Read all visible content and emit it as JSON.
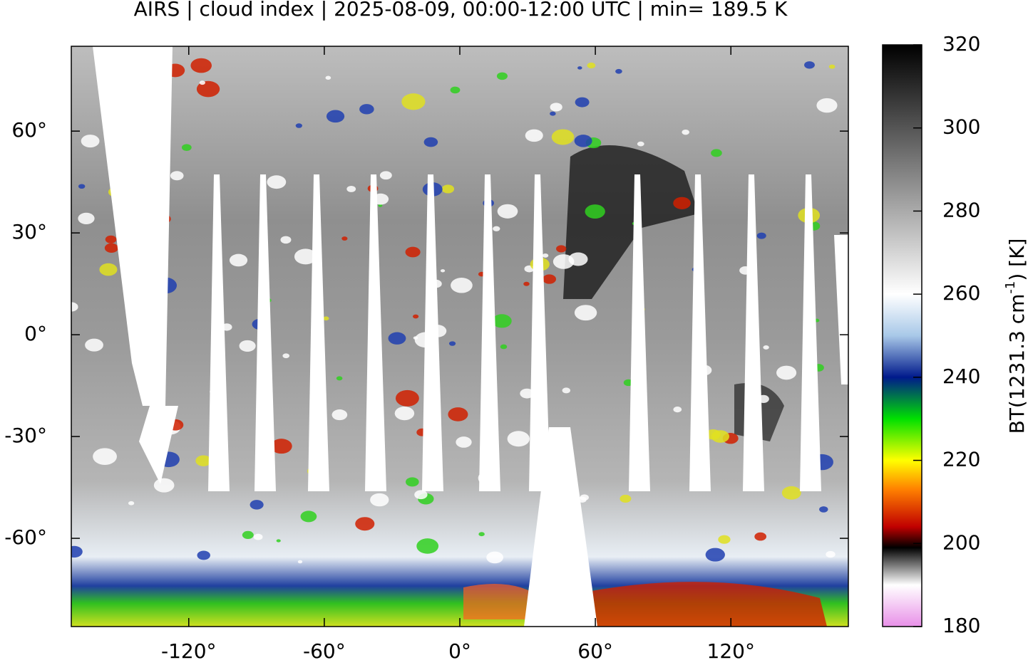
{
  "map": {
    "title": "AIRS | cloud index | 2025-08-09, 00:00-12:00 UTC | min= 189.5 K",
    "xlim": [
      -172,
      172
    ],
    "ylim": [
      -86,
      85
    ],
    "xticks": [
      {
        "value": -120,
        "label": "-120°"
      },
      {
        "value": -60,
        "label": "-60°"
      },
      {
        "value": 0,
        "label": "0°"
      },
      {
        "value": 60,
        "label": "60°"
      },
      {
        "value": 120,
        "label": "120°"
      }
    ],
    "yticks": [
      {
        "value": 60,
        "label": "60°"
      },
      {
        "value": 30,
        "label": "30°"
      },
      {
        "value": 0,
        "label": "0°"
      },
      {
        "value": -30,
        "label": "-30°"
      },
      {
        "value": -60,
        "label": "-60°"
      }
    ],
    "colorbar": {
      "lim": [
        180,
        320
      ],
      "ticks": [
        320,
        300,
        280,
        260,
        240,
        220,
        200,
        180
      ],
      "label": {
        "text": "BT(1231.3 cm",
        "sup": "-1",
        "tail": ") [K]"
      },
      "stops": [
        {
          "value": 180,
          "color": "#e890e8"
        },
        {
          "value": 190,
          "color": "#ffffff"
        },
        {
          "value": 199,
          "color": "#000000"
        },
        {
          "value": 204,
          "color": "#c00000"
        },
        {
          "value": 213,
          "color": "#ff8000"
        },
        {
          "value": 220,
          "color": "#ffff00"
        },
        {
          "value": 230,
          "color": "#00e000"
        },
        {
          "value": 240,
          "color": "#001a8c"
        },
        {
          "value": 250,
          "color": "#a8c8e8"
        },
        {
          "value": 260,
          "color": "#ffffff"
        },
        {
          "value": 320,
          "color": "#000000"
        }
      ]
    }
  }
}
